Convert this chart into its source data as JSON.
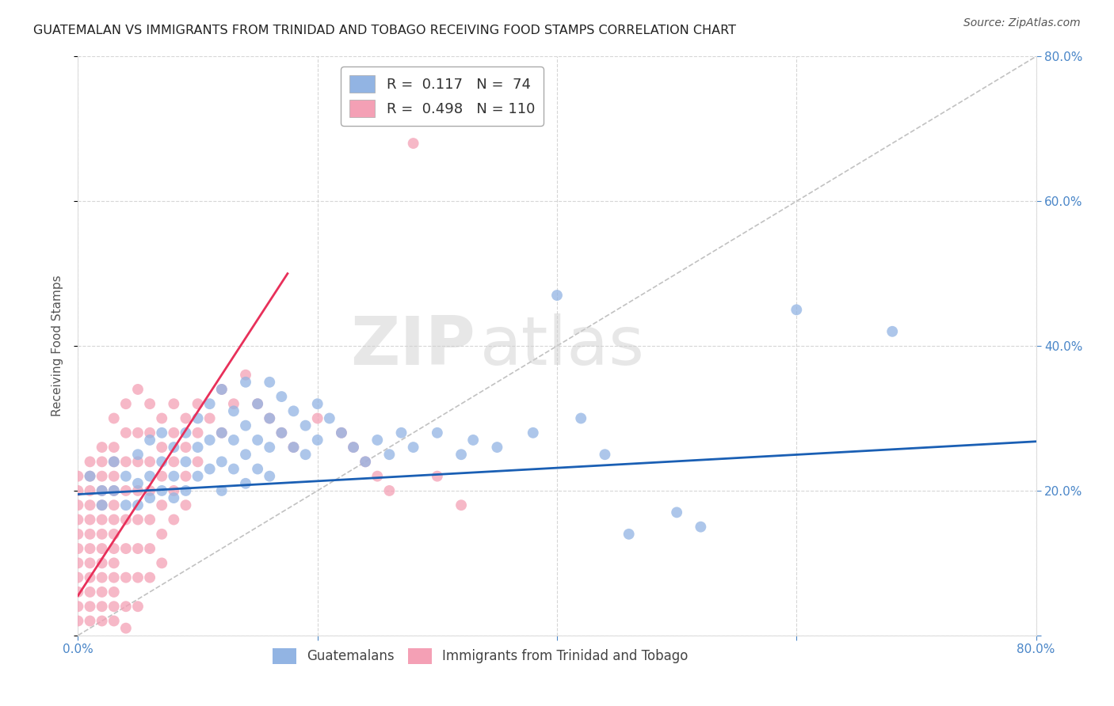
{
  "title": "GUATEMALAN VS IMMIGRANTS FROM TRINIDAD AND TOBAGO RECEIVING FOOD STAMPS CORRELATION CHART",
  "source": "Source: ZipAtlas.com",
  "ylabel": "Receiving Food Stamps",
  "xlim": [
    0.0,
    0.8
  ],
  "ylim": [
    0.0,
    0.8
  ],
  "blue_R": 0.117,
  "blue_N": 74,
  "pink_R": 0.498,
  "pink_N": 110,
  "blue_color": "#92b4e3",
  "pink_color": "#f4a0b5",
  "blue_line_color": "#1a5fb4",
  "pink_line_color": "#e8305a",
  "blue_scatter": [
    [
      0.01,
      0.22
    ],
    [
      0.02,
      0.2
    ],
    [
      0.02,
      0.18
    ],
    [
      0.03,
      0.24
    ],
    [
      0.03,
      0.2
    ],
    [
      0.04,
      0.22
    ],
    [
      0.04,
      0.18
    ],
    [
      0.05,
      0.25
    ],
    [
      0.05,
      0.21
    ],
    [
      0.05,
      0.18
    ],
    [
      0.06,
      0.27
    ],
    [
      0.06,
      0.22
    ],
    [
      0.06,
      0.19
    ],
    [
      0.07,
      0.28
    ],
    [
      0.07,
      0.24
    ],
    [
      0.07,
      0.2
    ],
    [
      0.08,
      0.26
    ],
    [
      0.08,
      0.22
    ],
    [
      0.08,
      0.19
    ],
    [
      0.09,
      0.28
    ],
    [
      0.09,
      0.24
    ],
    [
      0.09,
      0.2
    ],
    [
      0.1,
      0.3
    ],
    [
      0.1,
      0.26
    ],
    [
      0.1,
      0.22
    ],
    [
      0.11,
      0.32
    ],
    [
      0.11,
      0.27
    ],
    [
      0.11,
      0.23
    ],
    [
      0.12,
      0.34
    ],
    [
      0.12,
      0.28
    ],
    [
      0.12,
      0.24
    ],
    [
      0.12,
      0.2
    ],
    [
      0.13,
      0.31
    ],
    [
      0.13,
      0.27
    ],
    [
      0.13,
      0.23
    ],
    [
      0.14,
      0.35
    ],
    [
      0.14,
      0.29
    ],
    [
      0.14,
      0.25
    ],
    [
      0.14,
      0.21
    ],
    [
      0.15,
      0.32
    ],
    [
      0.15,
      0.27
    ],
    [
      0.15,
      0.23
    ],
    [
      0.16,
      0.35
    ],
    [
      0.16,
      0.3
    ],
    [
      0.16,
      0.26
    ],
    [
      0.16,
      0.22
    ],
    [
      0.17,
      0.33
    ],
    [
      0.17,
      0.28
    ],
    [
      0.18,
      0.31
    ],
    [
      0.18,
      0.26
    ],
    [
      0.19,
      0.29
    ],
    [
      0.19,
      0.25
    ],
    [
      0.2,
      0.32
    ],
    [
      0.2,
      0.27
    ],
    [
      0.21,
      0.3
    ],
    [
      0.22,
      0.28
    ],
    [
      0.23,
      0.26
    ],
    [
      0.24,
      0.24
    ],
    [
      0.25,
      0.27
    ],
    [
      0.26,
      0.25
    ],
    [
      0.27,
      0.28
    ],
    [
      0.28,
      0.26
    ],
    [
      0.3,
      0.28
    ],
    [
      0.32,
      0.25
    ],
    [
      0.33,
      0.27
    ],
    [
      0.35,
      0.26
    ],
    [
      0.38,
      0.28
    ],
    [
      0.4,
      0.47
    ],
    [
      0.42,
      0.3
    ],
    [
      0.44,
      0.25
    ],
    [
      0.46,
      0.14
    ],
    [
      0.5,
      0.17
    ],
    [
      0.52,
      0.15
    ],
    [
      0.6,
      0.45
    ],
    [
      0.68,
      0.42
    ]
  ],
  "pink_scatter": [
    [
      0.0,
      0.22
    ],
    [
      0.0,
      0.2
    ],
    [
      0.0,
      0.18
    ],
    [
      0.0,
      0.16
    ],
    [
      0.0,
      0.14
    ],
    [
      0.0,
      0.12
    ],
    [
      0.0,
      0.1
    ],
    [
      0.0,
      0.08
    ],
    [
      0.0,
      0.06
    ],
    [
      0.0,
      0.04
    ],
    [
      0.0,
      0.02
    ],
    [
      0.01,
      0.24
    ],
    [
      0.01,
      0.22
    ],
    [
      0.01,
      0.2
    ],
    [
      0.01,
      0.18
    ],
    [
      0.01,
      0.16
    ],
    [
      0.01,
      0.14
    ],
    [
      0.01,
      0.12
    ],
    [
      0.01,
      0.1
    ],
    [
      0.01,
      0.08
    ],
    [
      0.01,
      0.06
    ],
    [
      0.01,
      0.04
    ],
    [
      0.01,
      0.02
    ],
    [
      0.02,
      0.26
    ],
    [
      0.02,
      0.24
    ],
    [
      0.02,
      0.22
    ],
    [
      0.02,
      0.2
    ],
    [
      0.02,
      0.18
    ],
    [
      0.02,
      0.16
    ],
    [
      0.02,
      0.14
    ],
    [
      0.02,
      0.12
    ],
    [
      0.02,
      0.1
    ],
    [
      0.02,
      0.08
    ],
    [
      0.02,
      0.06
    ],
    [
      0.02,
      0.04
    ],
    [
      0.02,
      0.02
    ],
    [
      0.03,
      0.3
    ],
    [
      0.03,
      0.26
    ],
    [
      0.03,
      0.24
    ],
    [
      0.03,
      0.22
    ],
    [
      0.03,
      0.2
    ],
    [
      0.03,
      0.18
    ],
    [
      0.03,
      0.16
    ],
    [
      0.03,
      0.14
    ],
    [
      0.03,
      0.12
    ],
    [
      0.03,
      0.1
    ],
    [
      0.03,
      0.08
    ],
    [
      0.03,
      0.06
    ],
    [
      0.03,
      0.04
    ],
    [
      0.03,
      0.02
    ],
    [
      0.04,
      0.32
    ],
    [
      0.04,
      0.28
    ],
    [
      0.04,
      0.24
    ],
    [
      0.04,
      0.2
    ],
    [
      0.04,
      0.16
    ],
    [
      0.04,
      0.12
    ],
    [
      0.04,
      0.08
    ],
    [
      0.04,
      0.04
    ],
    [
      0.05,
      0.34
    ],
    [
      0.05,
      0.28
    ],
    [
      0.05,
      0.24
    ],
    [
      0.05,
      0.2
    ],
    [
      0.05,
      0.16
    ],
    [
      0.05,
      0.12
    ],
    [
      0.05,
      0.08
    ],
    [
      0.05,
      0.04
    ],
    [
      0.06,
      0.32
    ],
    [
      0.06,
      0.28
    ],
    [
      0.06,
      0.24
    ],
    [
      0.06,
      0.2
    ],
    [
      0.06,
      0.16
    ],
    [
      0.06,
      0.12
    ],
    [
      0.06,
      0.08
    ],
    [
      0.07,
      0.3
    ],
    [
      0.07,
      0.26
    ],
    [
      0.07,
      0.22
    ],
    [
      0.07,
      0.18
    ],
    [
      0.07,
      0.14
    ],
    [
      0.07,
      0.1
    ],
    [
      0.08,
      0.32
    ],
    [
      0.08,
      0.28
    ],
    [
      0.08,
      0.24
    ],
    [
      0.08,
      0.2
    ],
    [
      0.08,
      0.16
    ],
    [
      0.09,
      0.3
    ],
    [
      0.09,
      0.26
    ],
    [
      0.09,
      0.22
    ],
    [
      0.09,
      0.18
    ],
    [
      0.1,
      0.32
    ],
    [
      0.1,
      0.28
    ],
    [
      0.1,
      0.24
    ],
    [
      0.11,
      0.3
    ],
    [
      0.12,
      0.34
    ],
    [
      0.12,
      0.28
    ],
    [
      0.13,
      0.32
    ],
    [
      0.14,
      0.36
    ],
    [
      0.15,
      0.32
    ],
    [
      0.16,
      0.3
    ],
    [
      0.17,
      0.28
    ],
    [
      0.18,
      0.26
    ],
    [
      0.2,
      0.3
    ],
    [
      0.22,
      0.28
    ],
    [
      0.23,
      0.26
    ],
    [
      0.24,
      0.24
    ],
    [
      0.25,
      0.22
    ],
    [
      0.26,
      0.2
    ],
    [
      0.28,
      0.68
    ],
    [
      0.3,
      0.22
    ],
    [
      0.32,
      0.18
    ],
    [
      0.04,
      0.01
    ]
  ],
  "pink_line_x": [
    0.0,
    0.175
  ],
  "pink_line_y": [
    0.055,
    0.5
  ],
  "blue_line_x": [
    0.0,
    0.8
  ],
  "blue_line_y": [
    0.195,
    0.268
  ],
  "watermark_zip": "ZIP",
  "watermark_atlas": "atlas",
  "legend_blue_text": "R =  0.117   N =  74",
  "legend_pink_text": "R =  0.498   N = 110",
  "bottom_legend_blue": "Guatemalans",
  "bottom_legend_pink": "Immigrants from Trinidad and Tobago"
}
